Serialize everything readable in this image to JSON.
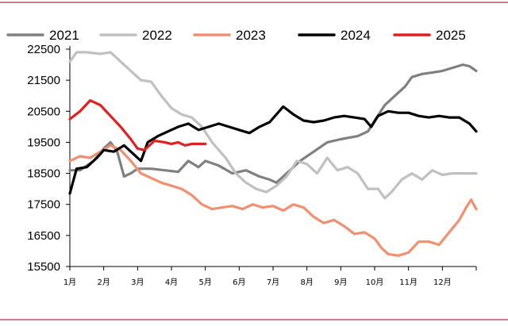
{
  "chart_data": {
    "type": "line",
    "title": "",
    "xlabel": "",
    "ylabel": "",
    "x_domain": [
      0,
      12
    ],
    "ylim": [
      15500,
      22500
    ],
    "yticks": [
      15500,
      16500,
      17500,
      18500,
      19500,
      20500,
      21500,
      22500
    ],
    "categories": [
      "1月",
      "2月",
      "3月",
      "4月",
      "5月",
      "6月",
      "7月",
      "8月",
      "9月",
      "10月",
      "11月",
      "12月"
    ],
    "grid": false,
    "legend": "top",
    "series": [
      {
        "name": "2021",
        "color": "#808080",
        "points": [
          [
            0,
            18600
          ],
          [
            0.3,
            18600
          ],
          [
            0.7,
            18900
          ],
          [
            1.0,
            19300
          ],
          [
            1.2,
            19500
          ],
          [
            1.4,
            19200
          ],
          [
            1.6,
            18400
          ],
          [
            1.8,
            18500
          ],
          [
            2.0,
            18650
          ],
          [
            2.4,
            18650
          ],
          [
            2.8,
            18600
          ],
          [
            3.2,
            18550
          ],
          [
            3.5,
            18900
          ],
          [
            3.8,
            18700
          ],
          [
            4.0,
            18900
          ],
          [
            4.4,
            18750
          ],
          [
            4.8,
            18500
          ],
          [
            5.2,
            18600
          ],
          [
            5.6,
            18400
          ],
          [
            5.9,
            18300
          ],
          [
            6.1,
            18200
          ],
          [
            6.4,
            18500
          ],
          [
            6.8,
            18900
          ],
          [
            7.2,
            19200
          ],
          [
            7.6,
            19500
          ],
          [
            8.0,
            19600
          ],
          [
            8.5,
            19700
          ],
          [
            8.8,
            19850
          ],
          [
            9.0,
            20200
          ],
          [
            9.3,
            20700
          ],
          [
            9.6,
            21000
          ],
          [
            9.9,
            21300
          ],
          [
            10.1,
            21600
          ],
          [
            10.4,
            21700
          ],
          [
            10.7,
            21750
          ],
          [
            11.0,
            21800
          ],
          [
            11.3,
            21900
          ],
          [
            11.6,
            22000
          ],
          [
            11.8,
            21950
          ],
          [
            12.0,
            21800
          ]
        ]
      },
      {
        "name": "2022",
        "color": "#c0c0c0",
        "points": [
          [
            0,
            22100
          ],
          [
            0.2,
            22400
          ],
          [
            0.5,
            22400
          ],
          [
            0.9,
            22350
          ],
          [
            1.2,
            22400
          ],
          [
            1.5,
            22100
          ],
          [
            1.8,
            21800
          ],
          [
            2.1,
            21500
          ],
          [
            2.4,
            21450
          ],
          [
            2.7,
            21000
          ],
          [
            3.0,
            20600
          ],
          [
            3.3,
            20400
          ],
          [
            3.6,
            20300
          ],
          [
            3.9,
            20000
          ],
          [
            4.2,
            19500
          ],
          [
            4.6,
            19000
          ],
          [
            4.9,
            18500
          ],
          [
            5.2,
            18200
          ],
          [
            5.5,
            18000
          ],
          [
            5.8,
            17900
          ],
          [
            6.1,
            18100
          ],
          [
            6.4,
            18400
          ],
          [
            6.7,
            18900
          ],
          [
            7.0,
            18800
          ],
          [
            7.3,
            18500
          ],
          [
            7.6,
            19000
          ],
          [
            7.9,
            18600
          ],
          [
            8.2,
            18700
          ],
          [
            8.5,
            18500
          ],
          [
            8.8,
            18000
          ],
          [
            9.1,
            18000
          ],
          [
            9.3,
            17700
          ],
          [
            9.5,
            17900
          ],
          [
            9.8,
            18300
          ],
          [
            10.1,
            18500
          ],
          [
            10.4,
            18300
          ],
          [
            10.7,
            18600
          ],
          [
            11.0,
            18450
          ],
          [
            11.3,
            18500
          ],
          [
            11.6,
            18500
          ],
          [
            12.0,
            18500
          ]
        ]
      },
      {
        "name": "2023",
        "color": "#f09070",
        "points": [
          [
            0,
            18900
          ],
          [
            0.3,
            19050
          ],
          [
            0.6,
            19000
          ],
          [
            0.9,
            19200
          ],
          [
            1.2,
            19400
          ],
          [
            1.5,
            19250
          ],
          [
            1.8,
            18900
          ],
          [
            2.1,
            18500
          ],
          [
            2.4,
            18350
          ],
          [
            2.7,
            18200
          ],
          [
            3.0,
            18100
          ],
          [
            3.3,
            18000
          ],
          [
            3.6,
            17800
          ],
          [
            3.9,
            17500
          ],
          [
            4.2,
            17350
          ],
          [
            4.5,
            17400
          ],
          [
            4.8,
            17450
          ],
          [
            5.1,
            17350
          ],
          [
            5.4,
            17500
          ],
          [
            5.7,
            17400
          ],
          [
            6.0,
            17450
          ],
          [
            6.3,
            17300
          ],
          [
            6.6,
            17500
          ],
          [
            6.9,
            17400
          ],
          [
            7.2,
            17100
          ],
          [
            7.5,
            16900
          ],
          [
            7.8,
            17000
          ],
          [
            8.1,
            16800
          ],
          [
            8.4,
            16550
          ],
          [
            8.7,
            16600
          ],
          [
            9.0,
            16400
          ],
          [
            9.2,
            16100
          ],
          [
            9.4,
            15900
          ],
          [
            9.7,
            15850
          ],
          [
            10.0,
            15950
          ],
          [
            10.3,
            16300
          ],
          [
            10.6,
            16300
          ],
          [
            10.9,
            16200
          ],
          [
            11.2,
            16600
          ],
          [
            11.5,
            17000
          ],
          [
            11.7,
            17400
          ],
          [
            11.85,
            17650
          ],
          [
            12.0,
            17350
          ]
        ]
      },
      {
        "name": "2024",
        "color": "#000000",
        "points": [
          [
            0,
            17850
          ],
          [
            0.2,
            18650
          ],
          [
            0.5,
            18700
          ],
          [
            0.8,
            19000
          ],
          [
            1.0,
            19250
          ],
          [
            1.3,
            19200
          ],
          [
            1.6,
            19400
          ],
          [
            1.9,
            19100
          ],
          [
            2.1,
            18900
          ],
          [
            2.3,
            19500
          ],
          [
            2.6,
            19700
          ],
          [
            2.9,
            19850
          ],
          [
            3.2,
            20000
          ],
          [
            3.5,
            20100
          ],
          [
            3.8,
            19900
          ],
          [
            4.1,
            20000
          ],
          [
            4.4,
            20100
          ],
          [
            4.7,
            20000
          ],
          [
            5.0,
            19900
          ],
          [
            5.3,
            19800
          ],
          [
            5.6,
            20000
          ],
          [
            5.9,
            20150
          ],
          [
            6.1,
            20400
          ],
          [
            6.3,
            20650
          ],
          [
            6.6,
            20400
          ],
          [
            6.9,
            20200
          ],
          [
            7.2,
            20150
          ],
          [
            7.5,
            20200
          ],
          [
            7.8,
            20300
          ],
          [
            8.1,
            20350
          ],
          [
            8.4,
            20300
          ],
          [
            8.7,
            20250
          ],
          [
            8.9,
            20000
          ],
          [
            9.1,
            20350
          ],
          [
            9.4,
            20500
          ],
          [
            9.7,
            20450
          ],
          [
            10.0,
            20450
          ],
          [
            10.3,
            20350
          ],
          [
            10.6,
            20300
          ],
          [
            10.9,
            20350
          ],
          [
            11.2,
            20300
          ],
          [
            11.5,
            20300
          ],
          [
            11.8,
            20100
          ],
          [
            12.0,
            19850
          ]
        ]
      },
      {
        "name": "2025",
        "color": "#e02020",
        "points": [
          [
            0,
            20250
          ],
          [
            0.3,
            20500
          ],
          [
            0.6,
            20850
          ],
          [
            0.9,
            20700
          ],
          [
            1.2,
            20350
          ],
          [
            1.5,
            20000
          ],
          [
            1.8,
            19600
          ],
          [
            2.0,
            19300
          ],
          [
            2.2,
            19250
          ],
          [
            2.5,
            19550
          ],
          [
            2.8,
            19500
          ],
          [
            3.0,
            19450
          ],
          [
            3.2,
            19500
          ],
          [
            3.4,
            19400
          ],
          [
            3.6,
            19450
          ],
          [
            4.0,
            19450
          ]
        ]
      }
    ]
  }
}
